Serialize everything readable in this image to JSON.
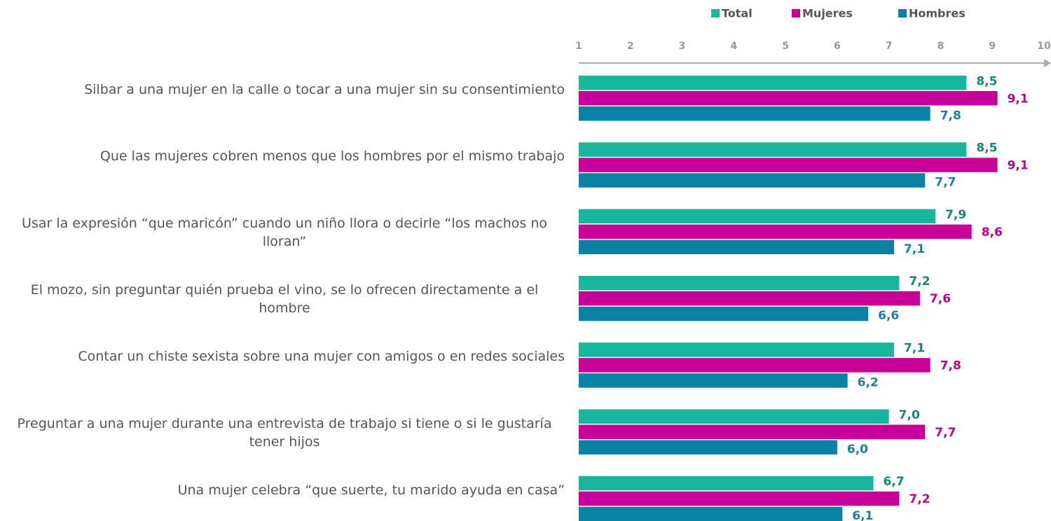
{
  "chart_data": {
    "type": "bar",
    "orientation": "horizontal",
    "categories": [
      "Silbar a una mujer en la calle o tocar a una mujer sin su consentimiento",
      "Que las mujeres cobren menos que los hombres por el mismo trabajo",
      "Usar la expresión “que maricón” cuando un niño llora o decirle “los machos no lloran”",
      "El mozo, sin preguntar quién prueba el vino, se lo ofrecen directamente a el hombre",
      "Contar un chiste sexista sobre una mujer con amigos o en redes sociales",
      "Preguntar a una mujer durante una entrevista de trabajo si tiene o si le gustaría tener hijos",
      "Una mujer celebra “que suerte, tu marido ayuda en casa”"
    ],
    "series": [
      {
        "name": "Total",
        "color": "#1ab59d",
        "label_color": "#17847a",
        "values": [
          8.5,
          8.5,
          7.9,
          7.2,
          7.1,
          7.0,
          6.7
        ],
        "value_labels": [
          "8,5",
          "8,5",
          "7,9",
          "7,2",
          "7,1",
          "7,0",
          "6,7"
        ]
      },
      {
        "name": "Mujeres",
        "color": "#c8009a",
        "label_color": "#c0008f",
        "values": [
          9.1,
          9.1,
          8.6,
          7.6,
          7.8,
          7.7,
          7.2
        ],
        "value_labels": [
          "9,1",
          "9,1",
          "8,6",
          "7,6",
          "7,8",
          "7,7",
          "7,2"
        ]
      },
      {
        "name": "Hombres",
        "color": "#0a82a3",
        "label_color": "#1a7fa0",
        "values": [
          7.8,
          7.7,
          7.1,
          6.6,
          6.2,
          6.0,
          6.1
        ],
        "value_labels": [
          "7,8",
          "7,7",
          "7,1",
          "6,6",
          "6,2",
          "6,0",
          "6,1"
        ]
      }
    ],
    "xlim": [
      1,
      10
    ],
    "xticks": [
      1,
      2,
      3,
      4,
      5,
      6,
      7,
      8,
      9,
      10
    ]
  }
}
